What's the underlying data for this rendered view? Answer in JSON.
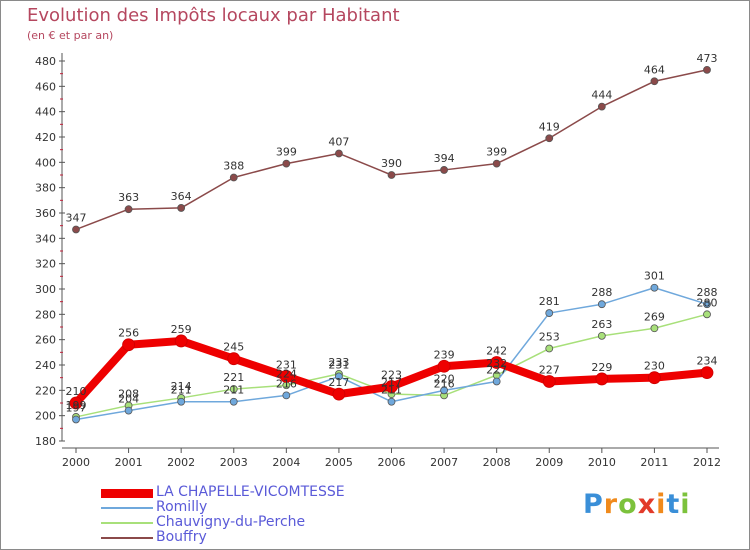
{
  "header": {
    "title": "Evolution des Impôts locaux par Habitant",
    "subtitle": "(en € et par an)"
  },
  "brand": {
    "text": "Proxiti",
    "letters": [
      "P",
      "r",
      "o",
      "x",
      "i",
      "t",
      "i"
    ],
    "colors": [
      "#3a8fd8",
      "#f08a1c",
      "#7cc23c",
      "#e23a2a",
      "#f08a1c",
      "#3a8fd8",
      "#7cc23c"
    ]
  },
  "chart_data": {
    "type": "line",
    "x": [
      "2000",
      "2001",
      "2002",
      "2003",
      "2004",
      "2005",
      "2006",
      "2007",
      "2008",
      "2009",
      "2010",
      "2011",
      "2012"
    ],
    "ylim": [
      180,
      480
    ],
    "yticks": [
      180,
      200,
      220,
      240,
      260,
      280,
      300,
      320,
      340,
      360,
      380,
      400,
      420,
      440,
      460,
      480
    ],
    "grid": false,
    "legend_position": "bottom-left",
    "series": [
      {
        "name": "LA CHAPELLE-VICOMTESSE",
        "color": "#ee0000",
        "values": [
          210,
          256,
          259,
          245,
          231,
          217,
          223,
          239,
          242,
          227,
          229,
          230,
          234
        ],
        "labels": [
          "210",
          "256",
          "259",
          "245",
          "231",
          "217",
          "223",
          "239",
          "242",
          "227",
          "229",
          "230",
          "234"
        ]
      },
      {
        "name": "Romilly",
        "color": "#6fa8dc",
        "values": [
          197,
          204,
          211,
          211,
          216,
          231,
          211,
          220,
          227,
          281,
          288,
          301,
          288
        ],
        "labels": [
          "197",
          "204",
          "211",
          "211",
          "216",
          "231",
          "211",
          "220",
          "227",
          "281",
          "288",
          "301",
          "288"
        ]
      },
      {
        "name": "Chauvigny-du-Perche",
        "color": "#a8e07a",
        "values": [
          199,
          208,
          214,
          221,
          224,
          233,
          217,
          216,
          232,
          253,
          263,
          269,
          280
        ],
        "labels": [
          "199",
          "208",
          "214",
          "221",
          "224",
          "233",
          "217",
          "216",
          "232",
          "253",
          "263",
          "269",
          "280"
        ]
      },
      {
        "name": "Bouffry",
        "color": "#8b4a4a",
        "values": [
          347,
          363,
          364,
          388,
          399,
          407,
          390,
          394,
          399,
          419,
          444,
          464,
          473
        ],
        "labels": [
          "347",
          "363",
          "364",
          "388",
          "399",
          "407",
          "390",
          "394",
          "399",
          "419",
          "444",
          "464",
          "473"
        ]
      }
    ]
  }
}
